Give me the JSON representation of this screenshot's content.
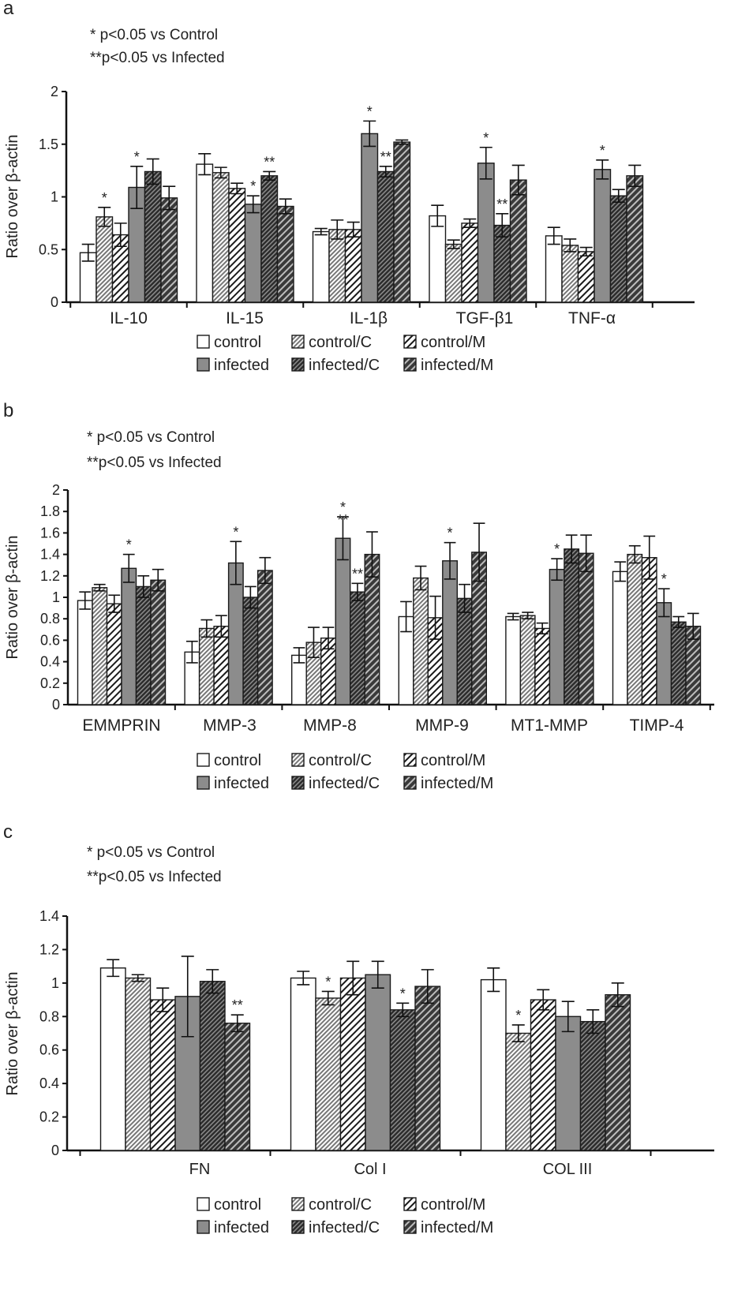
{
  "colors": {
    "control": "#ffffff",
    "control_c": "#d4d4d4",
    "control_m": "#ffffff",
    "infected": "#8c8c8c",
    "infected_c": "#555555",
    "infected_m": "#4a4a4a",
    "stroke": "#1a1a1a"
  },
  "legend_labels": [
    "control",
    "control/C",
    "control/M",
    "infected",
    "infected/C",
    "infected/M"
  ],
  "chart_data": [
    {
      "panel_label": "a",
      "type": "bar",
      "annotations": [
        "* p<0.05 vs Control",
        "**p<0.05 vs Infected"
      ],
      "ylabel": "Ratio over β-actin",
      "ylim": [
        0,
        2
      ],
      "yticks": [
        0,
        0.5,
        1,
        1.5,
        2
      ],
      "yticklabels": [
        "0",
        "0.5",
        "1",
        "1.5",
        "2"
      ],
      "categories": [
        "IL-10",
        "IL-15",
        "IL-1β",
        "TGF-β1",
        "TNF-α"
      ],
      "series": [
        {
          "name": "control",
          "values": [
            0.47,
            1.31,
            0.67,
            0.82,
            0.63
          ],
          "errors": [
            0.08,
            0.1,
            0.03,
            0.1,
            0.08
          ]
        },
        {
          "name": "control/C",
          "values": [
            0.81,
            1.23,
            0.69,
            0.55,
            0.54
          ],
          "errors": [
            0.09,
            0.05,
            0.09,
            0.04,
            0.06
          ]
        },
        {
          "name": "control/M",
          "values": [
            0.64,
            1.08,
            0.69,
            0.75,
            0.48
          ],
          "errors": [
            0.11,
            0.05,
            0.07,
            0.04,
            0.04
          ]
        },
        {
          "name": "infected",
          "values": [
            1.09,
            0.93,
            1.6,
            1.32,
            1.26
          ],
          "errors": [
            0.2,
            0.08,
            0.12,
            0.15,
            0.09
          ]
        },
        {
          "name": "infected/C",
          "values": [
            1.24,
            1.2,
            1.24,
            0.73,
            1.01
          ],
          "errors": [
            0.12,
            0.04,
            0.05,
            0.11,
            0.06
          ]
        },
        {
          "name": "infected/M",
          "values": [
            0.99,
            0.91,
            1.52,
            1.16,
            1.2
          ],
          "errors": [
            0.11,
            0.07,
            0.02,
            0.14,
            0.1
          ]
        }
      ],
      "significance": [
        {
          "category": 0,
          "series": 1,
          "mark": "*"
        },
        {
          "category": 0,
          "series": 3,
          "mark": "*"
        },
        {
          "category": 1,
          "series": 3,
          "mark": "*"
        },
        {
          "category": 1,
          "series": 4,
          "mark": "**"
        },
        {
          "category": 2,
          "series": 3,
          "mark": "*"
        },
        {
          "category": 2,
          "series": 4,
          "mark": "**"
        },
        {
          "category": 3,
          "series": 3,
          "mark": "*"
        },
        {
          "category": 3,
          "series": 4,
          "mark": "**"
        },
        {
          "category": 4,
          "series": 3,
          "mark": "*"
        }
      ]
    },
    {
      "panel_label": "b",
      "type": "bar",
      "annotations": [
        "* p<0.05 vs Control",
        "**p<0.05 vs Infected"
      ],
      "ylabel": "Ratio over β-actin",
      "ylim": [
        0,
        2
      ],
      "yticks": [
        0,
        0.2,
        0.4,
        0.6,
        0.8,
        1,
        1.2,
        1.4,
        1.6,
        1.8,
        2
      ],
      "yticklabels": [
        "0",
        "0.2",
        "0.4",
        "0.6",
        "0.8",
        "1",
        "1.2",
        "1.4",
        "1.6",
        "1.8",
        "2"
      ],
      "categories": [
        "EMMPRIN",
        "MMP-3",
        "MMP-8",
        "MMP-9",
        "MT1-MMP",
        "TIMP-4"
      ],
      "series": [
        {
          "name": "control",
          "values": [
            0.97,
            0.49,
            0.46,
            0.82,
            0.82,
            1.24
          ],
          "errors": [
            0.08,
            0.1,
            0.07,
            0.14,
            0.03,
            0.09
          ]
        },
        {
          "name": "control/C",
          "values": [
            1.09,
            0.71,
            0.58,
            1.18,
            0.83,
            1.4
          ],
          "errors": [
            0.03,
            0.08,
            0.14,
            0.11,
            0.03,
            0.08
          ]
        },
        {
          "name": "control/M",
          "values": [
            0.94,
            0.73,
            0.62,
            0.81,
            0.71,
            1.37
          ],
          "errors": [
            0.08,
            0.1,
            0.1,
            0.2,
            0.05,
            0.2
          ]
        },
        {
          "name": "infected",
          "values": [
            1.27,
            1.32,
            1.55,
            1.34,
            1.26,
            0.95
          ],
          "errors": [
            0.13,
            0.2,
            0.2,
            0.17,
            0.1,
            0.13
          ]
        },
        {
          "name": "infected/C",
          "values": [
            1.1,
            1.0,
            1.05,
            0.99,
            1.45,
            0.77
          ],
          "errors": [
            0.1,
            0.1,
            0.08,
            0.13,
            0.13,
            0.05
          ]
        },
        {
          "name": "infected/M",
          "values": [
            1.16,
            1.25,
            1.4,
            1.42,
            1.41,
            0.73
          ],
          "errors": [
            0.1,
            0.12,
            0.21,
            0.27,
            0.17,
            0.12
          ]
        }
      ],
      "significance": [
        {
          "category": 0,
          "series": 3,
          "mark": "*"
        },
        {
          "category": 1,
          "series": 3,
          "mark": "*"
        },
        {
          "category": 2,
          "series": 3,
          "mark": "*"
        },
        {
          "category": 2,
          "series": 3,
          "mark": "**",
          "offset": 1
        },
        {
          "category": 2,
          "series": 4,
          "mark": "**"
        },
        {
          "category": 3,
          "series": 3,
          "mark": "*"
        },
        {
          "category": 4,
          "series": 3,
          "mark": "*"
        },
        {
          "category": 5,
          "series": 3,
          "mark": "*"
        }
      ]
    },
    {
      "panel_label": "c",
      "type": "bar",
      "annotations": [
        "* p<0.05 vs Control",
        "**p<0.05 vs Infected"
      ],
      "ylabel": "Ratio over β-actin",
      "ylim": [
        0,
        1.4
      ],
      "yticks": [
        0,
        0.2,
        0.4,
        0.6,
        0.8,
        1,
        1.2,
        1.4
      ],
      "yticklabels": [
        "0",
        "0.2",
        "0.4",
        "0.6",
        "0.8",
        "1",
        "1.2",
        "1.4"
      ],
      "categories": [
        "FN",
        "Col I",
        "COL III"
      ],
      "series": [
        {
          "name": "control",
          "values": [
            1.09,
            1.03,
            1.02
          ],
          "errors": [
            0.05,
            0.04,
            0.07
          ]
        },
        {
          "name": "control/C",
          "values": [
            1.03,
            0.91,
            0.7
          ],
          "errors": [
            0.02,
            0.04,
            0.05
          ]
        },
        {
          "name": "control/M",
          "values": [
            0.9,
            1.03,
            0.9
          ],
          "errors": [
            0.07,
            0.1,
            0.06
          ]
        },
        {
          "name": "infected",
          "values": [
            0.92,
            1.05,
            0.8
          ],
          "errors": [
            0.24,
            0.08,
            0.09
          ]
        },
        {
          "name": "infected/C",
          "values": [
            1.01,
            0.84,
            0.77
          ],
          "errors": [
            0.07,
            0.04,
            0.07
          ]
        },
        {
          "name": "infected/M",
          "values": [
            0.76,
            0.98,
            0.93
          ],
          "errors": [
            0.05,
            0.1,
            0.07
          ]
        }
      ],
      "significance": [
        {
          "category": 0,
          "series": 5,
          "mark": "**"
        },
        {
          "category": 1,
          "series": 1,
          "mark": "*"
        },
        {
          "category": 1,
          "series": 4,
          "mark": "*"
        },
        {
          "category": 2,
          "series": 1,
          "mark": "*"
        }
      ]
    }
  ]
}
